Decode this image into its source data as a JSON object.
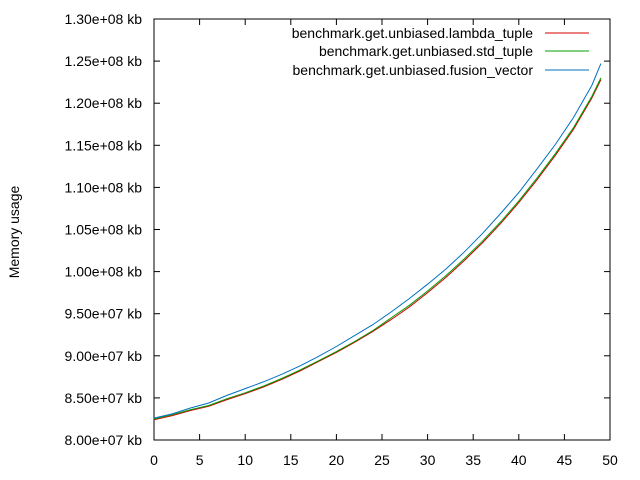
{
  "chart_data": {
    "type": "line",
    "title": "",
    "xlabel": "",
    "ylabel": "Memory usage",
    "xlim": [
      0,
      50
    ],
    "ylim": [
      80000000,
      130000000
    ],
    "grid": false,
    "legend_position": "top-right",
    "x_ticks": [
      0,
      5,
      10,
      15,
      20,
      25,
      30,
      35,
      40,
      45,
      50
    ],
    "x_tick_labels": [
      "0",
      "5",
      "10",
      "15",
      "20",
      "25",
      "30",
      "35",
      "40",
      "45",
      "50"
    ],
    "y_ticks": [
      80000000,
      85000000,
      90000000,
      95000000,
      100000000,
      105000000,
      110000000,
      115000000,
      120000000,
      125000000,
      130000000
    ],
    "y_tick_labels": [
      "8.00e+07 kb",
      "8.50e+07 kb",
      "9.00e+07 kb",
      "9.50e+07 kb",
      "1.00e+08 kb",
      "1.05e+08 kb",
      "1.10e+08 kb",
      "1.15e+08 kb",
      "1.20e+08 kb",
      "1.25e+08 kb",
      "1.30e+08 kb"
    ],
    "x": [
      0,
      2,
      4,
      6,
      8,
      10,
      12,
      14,
      16,
      18,
      20,
      22,
      24,
      26,
      28,
      30,
      32,
      34,
      36,
      38,
      40,
      42,
      44,
      46,
      48,
      49
    ],
    "series": [
      {
        "name": "benchmark.get.unbiased.lambda_tuple",
        "color": "#d00000",
        "values": [
          82400000,
          82900000,
          83500000,
          84000000,
          84800000,
          85500000,
          86300000,
          87200000,
          88200000,
          89300000,
          90400000,
          91600000,
          92900000,
          94300000,
          95800000,
          97500000,
          99300000,
          101300000,
          103400000,
          105700000,
          108200000,
          110900000,
          113800000,
          116900000,
          120600000,
          122800000
        ]
      },
      {
        "name": "benchmark.get.unbiased.std_tuple",
        "color": "#00a000",
        "values": [
          82500000,
          83000000,
          83600000,
          84100000,
          84900000,
          85600000,
          86400000,
          87300000,
          88300000,
          89400000,
          90500000,
          91700000,
          93000000,
          94500000,
          96000000,
          97700000,
          99500000,
          101500000,
          103600000,
          105900000,
          108400000,
          111100000,
          114000000,
          117100000,
          120800000,
          123000000
        ]
      },
      {
        "name": "benchmark.get.unbiased.fusion_vector",
        "color": "#0070c0",
        "values": [
          82600000,
          83100000,
          83800000,
          84400000,
          85300000,
          86100000,
          86900000,
          87800000,
          88800000,
          89900000,
          91100000,
          92400000,
          93700000,
          95200000,
          96800000,
          98500000,
          100300000,
          102300000,
          104500000,
          106900000,
          109400000,
          112200000,
          115100000,
          118300000,
          122100000,
          124700000
        ]
      }
    ]
  }
}
